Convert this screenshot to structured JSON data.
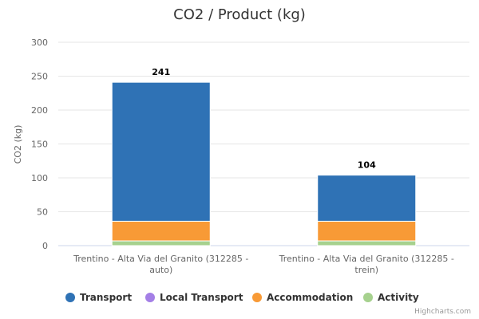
{
  "chart_data": {
    "type": "bar",
    "stacked": true,
    "title": "CO2 / Product (kg)",
    "ylabel": "CO2 (kg)",
    "ylim": [
      0,
      300
    ],
    "yticks": [
      0,
      50,
      100,
      150,
      200,
      250,
      300
    ],
    "categories": [
      [
        "Trentino - Alta Via del Granito (312285 -",
        "auto)"
      ],
      [
        "Trentino - Alta Via del Granito (312285 -",
        "trein)"
      ]
    ],
    "totals": [
      "241",
      "104"
    ],
    "series": [
      {
        "name": "Transport",
        "color": "#2f72b5",
        "values": [
          205,
          68
        ]
      },
      {
        "name": "Local Transport",
        "color": "#a47fe6",
        "values": [
          0,
          0
        ]
      },
      {
        "name": "Accommodation",
        "color": "#f89a36",
        "values": [
          29,
          29
        ]
      },
      {
        "name": "Activity",
        "color": "#a6d18e",
        "values": [
          7,
          7
        ]
      }
    ],
    "legend_position": "bottom",
    "grid": true
  },
  "credits": "Highcharts.com"
}
